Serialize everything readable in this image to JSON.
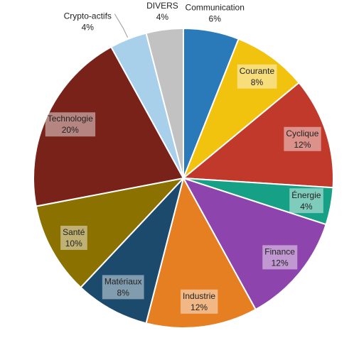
{
  "chart_data": {
    "type": "pie",
    "categories": [
      "Communication",
      "Courante",
      "Cyclique",
      "Énergie",
      "Finance",
      "Industrie",
      "Matériaux",
      "Santé",
      "Technologie",
      "Crypto-actifs",
      "DIVERS"
    ],
    "values": [
      6,
      8,
      12,
      4,
      12,
      12,
      8,
      10,
      20,
      4,
      4
    ],
    "value_labels": [
      "6%",
      "8%",
      "12%",
      "4%",
      "12%",
      "12%",
      "8%",
      "10%",
      "20%",
      "4%",
      "4%"
    ],
    "colors": [
      "#2a7ab9",
      "#f1c30f",
      "#c0392b",
      "#16a085",
      "#8e44ad",
      "#e67e22",
      "#1b4a6d",
      "#8b7100",
      "#78221a",
      "#a9d0eb",
      "#c2c2c2"
    ]
  }
}
